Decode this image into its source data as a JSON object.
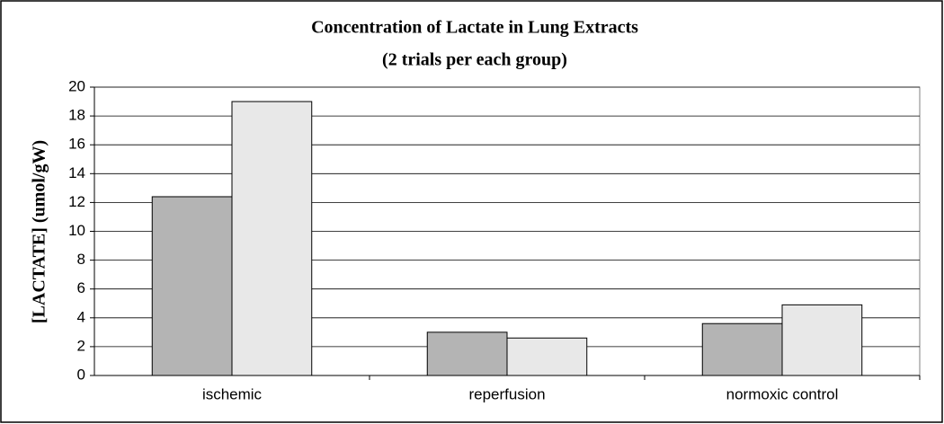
{
  "chart_data": {
    "type": "bar",
    "title": "Concentration of Lactate in Lung Extracts",
    "subtitle": "(2 trials per each group)",
    "y_label": "[LACTATE] (umol/gW)",
    "categories": [
      "ischemic",
      "reperfusion",
      "normoxic control"
    ],
    "series": [
      {
        "color": "#b4b4b4",
        "values": [
          12.4,
          3.0,
          3.6
        ]
      },
      {
        "color": "#e8e8e8",
        "values": [
          19.0,
          2.6,
          4.9
        ]
      }
    ],
    "ylim": [
      0,
      20
    ],
    "yticks": [
      0,
      2,
      4,
      6,
      8,
      10,
      12,
      14,
      16,
      18,
      20
    ],
    "grid": true
  }
}
